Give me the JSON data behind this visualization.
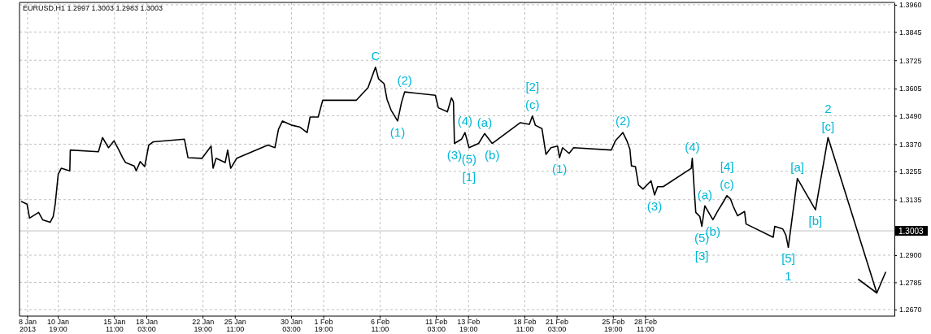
{
  "chart_data": {
    "type": "line",
    "title": "EURUSD,H1  1.2997 1.3003 1.2983 1.3003",
    "xlim": [
      "2013-01-07T14:00",
      "2013-03-21T02:00"
    ],
    "xticks": [
      {
        "value": "2013-01-08T06:00",
        "label": "8 Jan 2013"
      },
      {
        "value": "2013-01-10T19:00",
        "label": "10 Jan 19:00"
      },
      {
        "value": "2013-01-15T11:00",
        "label": "15 Jan 11:00"
      },
      {
        "value": "2013-01-18T03:00",
        "label": "18 Jan 03:00"
      },
      {
        "value": "2013-01-22T19:00",
        "label": "22 Jan 19:00"
      },
      {
        "value": "2013-01-25T11:00",
        "label": "25 Jan 11:00"
      },
      {
        "value": "2013-01-30T03:00",
        "label": "30 Jan 03:00"
      },
      {
        "value": "2013-02-01T19:00",
        "label": "1 Feb 19:00"
      },
      {
        "value": "2013-02-06T11:00",
        "label": "6 Feb 11:00"
      },
      {
        "value": "2013-02-11T03:00",
        "label": "11 Feb 03:00"
      },
      {
        "value": "2013-02-13T19:00",
        "label": "13 Feb 19:00"
      },
      {
        "value": "2013-02-18T11:00",
        "label": "18 Feb 11:00"
      },
      {
        "value": "2013-02-21T03:00",
        "label": "21 Feb 03:00"
      },
      {
        "value": "2013-02-25T19:00",
        "label": "25 Feb 19:00"
      },
      {
        "value": "2013-02-28T11:00",
        "label": "28 Feb 11:00"
      }
    ],
    "ylim": [
      1.2642,
      1.397
    ],
    "yticks": [
      {
        "value": 1.267,
        "label": "1.2670"
      },
      {
        "value": 1.2785,
        "label": "1.2785"
      },
      {
        "value": 1.29,
        "label": "1.2900"
      },
      {
        "value": 1.3135,
        "label": "1.3135"
      },
      {
        "value": 1.3255,
        "label": "1.3255"
      },
      {
        "value": 1.337,
        "label": "1.3370"
      },
      {
        "value": 1.349,
        "label": "1.3490"
      },
      {
        "value": 1.3605,
        "label": "1.3605"
      },
      {
        "value": 1.3725,
        "label": "1.3725"
      },
      {
        "value": 1.3845,
        "label": "1.3845"
      },
      {
        "value": 1.396,
        "label": "1.3960"
      }
    ],
    "grid": true,
    "ref_lines": [
      {
        "axis": "y",
        "value": 1.3003,
        "label": "1.3003",
        "color": "#c0c0c0"
      }
    ],
    "series": [
      {
        "color": "#000000",
        "x": [
          "2013-01-07T18:00",
          "2013-01-08T05:00",
          "2013-01-08T10:00",
          "2013-01-09T04:00",
          "2013-01-09T12:00",
          "2013-01-10T03:00",
          "2013-01-10T09:00",
          "2013-01-10T13:00",
          "2013-01-10T19:00",
          "2013-01-11T01:00",
          "2013-01-11T18:00",
          "2013-01-11T19:00",
          "2013-01-14T03:00",
          "2013-01-14T11:00",
          "2013-01-14T23:00",
          "2013-01-15T10:00",
          "2013-01-15T19:00",
          "2013-01-16T03:00",
          "2013-01-16T09:00",
          "2013-01-17T02:00",
          "2013-01-17T06:00",
          "2013-01-17T14:00",
          "2013-01-17T23:00",
          "2013-01-18T07:00",
          "2013-01-18T16:00",
          "2013-01-21T06:00",
          "2013-01-21T13:00",
          "2013-01-22T17:00",
          "2013-01-23T11:00",
          "2013-01-23T15:00",
          "2013-01-23T21:00",
          "2013-01-24T15:00",
          "2013-01-24T20:00",
          "2013-01-25T02:00",
          "2013-01-25T14:00",
          "2013-01-28T04:00",
          "2013-01-28T18:00",
          "2013-01-29T01:00",
          "2013-01-29T09:00",
          "2013-01-30T04:00",
          "2013-01-30T19:00",
          "2013-01-31T10:00",
          "2013-01-31T16:00",
          "2013-02-01T08:00",
          "2013-02-01T17:00",
          "2013-02-04T12:00",
          "2013-02-05T00:00",
          "2013-02-05T11:00",
          "2013-02-06T02:00",
          "2013-02-06T08:00",
          "2013-02-06T19:00",
          "2013-02-07T01:00",
          "2013-02-07T09:00",
          "2013-02-07T22:00",
          "2013-02-08T06:00",
          "2013-02-08T12:00",
          "2013-02-11T01:00",
          "2013-02-11T07:00",
          "2013-02-12T01:00",
          "2013-02-12T09:00",
          "2013-02-12T13:00",
          "2013-02-12T15:00",
          "2013-02-13T05:00",
          "2013-02-13T12:00",
          "2013-02-13T20:00",
          "2013-02-14T15:00",
          "2013-02-15T03:00",
          "2013-02-15T18:00",
          "2013-02-18T02:00",
          "2013-02-18T20:00",
          "2013-02-19T02:00",
          "2013-02-19T08:00",
          "2013-02-19T21:00",
          "2013-02-20T05:00",
          "2013-02-20T15:00",
          "2013-02-21T04:00",
          "2013-02-21T08:00",
          "2013-02-21T14:00",
          "2013-02-22T03:00",
          "2013-02-22T12:00",
          "2013-02-25T15:00",
          "2013-02-25T23:00",
          "2013-02-26T14:00",
          "2013-02-26T22:00",
          "2013-02-27T04:00",
          "2013-02-27T07:00",
          "2013-02-27T15:00",
          "2013-02-27T21:00",
          "2013-02-28T06:00",
          "2013-02-28T22:00",
          "2013-03-01T05:00",
          "2013-03-01T11:00",
          "2013-03-01T22:00",
          "2013-03-04T06:00",
          "2013-03-04T08:00",
          "2013-03-04T12:00",
          "2013-03-04T15:00",
          "2013-03-04T23:00",
          "2013-03-05T03:00",
          "2013-03-05T09:00",
          "2013-03-06T01:00",
          "2013-03-06T12:00",
          "2013-03-06T19:00",
          "2013-03-07T05:00",
          "2013-03-07T12:00",
          "2013-03-07T17:00",
          "2013-03-08T02:00",
          "2013-03-08T16:00",
          "2013-03-08T19:00",
          "2013-03-11T01:00",
          "2013-03-11T04:00",
          "2013-03-11T20:00",
          "2013-03-12T02:00",
          "2013-03-12T07:00"
        ],
        "values": [
          1.3127,
          1.3116,
          1.3057,
          1.3081,
          1.305,
          1.3039,
          1.3064,
          1.3116,
          1.3243,
          1.3268,
          1.3257,
          1.3345,
          1.3338,
          1.3398,
          1.3355,
          1.3384,
          1.3348,
          1.3313,
          1.3292,
          1.3278,
          1.3257,
          1.3296,
          1.3275,
          1.3366,
          1.338,
          1.3391,
          1.3313,
          1.331,
          1.3362,
          1.3268,
          1.331,
          1.3292,
          1.3345,
          1.3268,
          1.331,
          1.3366,
          1.3355,
          1.3433,
          1.3468,
          1.345,
          1.3443,
          1.3419,
          1.3485,
          1.3485,
          1.3556,
          1.3556,
          1.3584,
          1.3609,
          1.3696,
          1.3647,
          1.3626,
          1.3559,
          1.3514,
          1.3468,
          1.3549,
          1.3591,
          1.3577,
          1.3524,
          1.3507,
          1.3566,
          1.3549,
          1.3373,
          1.3391,
          1.3419,
          1.3355,
          1.3373,
          1.3415,
          1.3373,
          1.3461,
          1.3454,
          1.3489,
          1.345,
          1.3436,
          1.3327,
          1.3355,
          1.3362,
          1.3313,
          1.3355,
          1.3331,
          1.3355,
          1.3345,
          1.3384,
          1.3419,
          1.3384,
          1.3348,
          1.3278,
          1.3275,
          1.3197,
          1.318,
          1.3215,
          1.3155,
          1.319,
          1.319,
          1.3268,
          1.331,
          1.3173,
          1.3081,
          1.3064,
          1.3022,
          1.3109,
          1.305,
          1.3092,
          1.3116,
          1.3152,
          1.3138,
          1.3109,
          1.3067,
          1.3085,
          1.3032,
          1.2976,
          1.3022,
          1.3011,
          1.2986,
          1.2934
        ]
      },
      {
        "color": "#000000",
        "x": [
          "2013-03-12T07:00",
          "2013-03-13T01:00",
          "2013-03-14T13:00",
          "2013-03-15T14:00",
          "2013-03-19T15:00"
        ],
        "values": [
          1.2934,
          1.3225,
          1.3092,
          1.3398,
          1.274
        ]
      }
    ],
    "annotations": [
      {
        "text": "C",
        "x": "2013-02-06T02:00",
        "y": 1.3696
      },
      {
        "text": "(2)",
        "x": "2013-02-08T12:00",
        "y": 1.3591
      },
      {
        "text": "(1)",
        "x": "2013-02-07T22:00",
        "y": 1.3468
      },
      {
        "text": "(3)",
        "x": "2013-02-12T15:00",
        "y": 1.3373
      },
      {
        "text": "(4)",
        "x": "2013-02-13T12:00",
        "y": 1.3419
      },
      {
        "text": "(5)",
        "x": "2013-02-13T20:00",
        "y": 1.3355
      },
      {
        "text": "[1]",
        "x": "2013-02-13T20:00",
        "y": 1.3355
      },
      {
        "text": "(a)",
        "x": "2013-02-15T03:00",
        "y": 1.3415
      },
      {
        "text": "(b)",
        "x": "2013-02-15T18:00",
        "y": 1.3373
      },
      {
        "text": "(c)",
        "x": "2013-02-19T02:00",
        "y": 1.3489
      },
      {
        "text": "[2]",
        "x": "2013-02-19T02:00",
        "y": 1.3489
      },
      {
        "text": "(1)",
        "x": "2013-02-21T08:00",
        "y": 1.3313
      },
      {
        "text": "(2)",
        "x": "2013-02-26T14:00",
        "y": 1.3419
      },
      {
        "text": "(3)",
        "x": "2013-03-01T05:00",
        "y": 1.3155
      },
      {
        "text": "(4)",
        "x": "2013-03-04T08:00",
        "y": 1.331
      },
      {
        "text": "(5)",
        "x": "2013-03-05T03:00",
        "y": 1.3022
      },
      {
        "text": "[3]",
        "x": "2013-03-05T03:00",
        "y": 1.3022
      },
      {
        "text": "(a)",
        "x": "2013-03-05T09:00",
        "y": 1.3109
      },
      {
        "text": "(b)",
        "x": "2013-03-06T01:00",
        "y": 1.305
      },
      {
        "text": "(c)",
        "x": "2013-03-07T05:00",
        "y": 1.3152
      },
      {
        "text": "[4]",
        "x": "2013-03-07T05:00",
        "y": 1.3152
      },
      {
        "text": "[5]",
        "x": "2013-03-12T07:00",
        "y": 1.2934
      },
      {
        "text": "1",
        "x": "2013-03-12T07:00",
        "y": 1.2934
      },
      {
        "text": "[a]",
        "x": "2013-03-13T01:00",
        "y": 1.3225
      },
      {
        "text": "[b]",
        "x": "2013-03-14T13:00",
        "y": 1.3092
      },
      {
        "text": "[c]",
        "x": "2013-03-15T14:00",
        "y": 1.3398
      },
      {
        "text": "2",
        "x": "2013-03-15T14:00",
        "y": 1.3398
      }
    ]
  }
}
